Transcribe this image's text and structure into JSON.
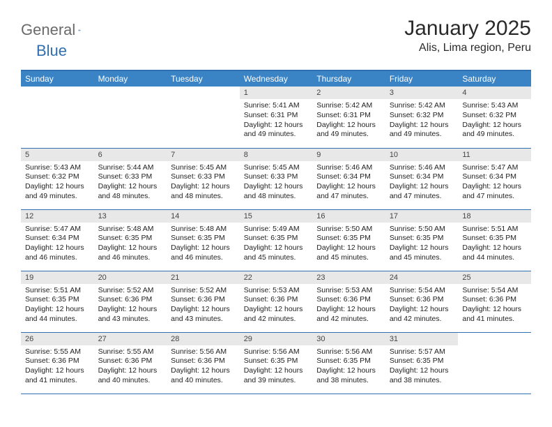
{
  "logo": {
    "part1": "General",
    "part2": "Blue"
  },
  "title": "January 2025",
  "location": "Alis, Lima region, Peru",
  "colors": {
    "header_bg": "#3a84c6",
    "header_border": "#2f6fb0",
    "daynum_bg": "#e8e8e8",
    "text": "#222222"
  },
  "weekdays": [
    "Sunday",
    "Monday",
    "Tuesday",
    "Wednesday",
    "Thursday",
    "Friday",
    "Saturday"
  ],
  "weeks": [
    [
      {
        "n": "",
        "sr": "",
        "ss": "",
        "dl": ""
      },
      {
        "n": "",
        "sr": "",
        "ss": "",
        "dl": ""
      },
      {
        "n": "",
        "sr": "",
        "ss": "",
        "dl": ""
      },
      {
        "n": "1",
        "sr": "Sunrise: 5:41 AM",
        "ss": "Sunset: 6:31 PM",
        "dl": "Daylight: 12 hours and 49 minutes."
      },
      {
        "n": "2",
        "sr": "Sunrise: 5:42 AM",
        "ss": "Sunset: 6:31 PM",
        "dl": "Daylight: 12 hours and 49 minutes."
      },
      {
        "n": "3",
        "sr": "Sunrise: 5:42 AM",
        "ss": "Sunset: 6:32 PM",
        "dl": "Daylight: 12 hours and 49 minutes."
      },
      {
        "n": "4",
        "sr": "Sunrise: 5:43 AM",
        "ss": "Sunset: 6:32 PM",
        "dl": "Daylight: 12 hours and 49 minutes."
      }
    ],
    [
      {
        "n": "5",
        "sr": "Sunrise: 5:43 AM",
        "ss": "Sunset: 6:32 PM",
        "dl": "Daylight: 12 hours and 49 minutes."
      },
      {
        "n": "6",
        "sr": "Sunrise: 5:44 AM",
        "ss": "Sunset: 6:33 PM",
        "dl": "Daylight: 12 hours and 48 minutes."
      },
      {
        "n": "7",
        "sr": "Sunrise: 5:45 AM",
        "ss": "Sunset: 6:33 PM",
        "dl": "Daylight: 12 hours and 48 minutes."
      },
      {
        "n": "8",
        "sr": "Sunrise: 5:45 AM",
        "ss": "Sunset: 6:33 PM",
        "dl": "Daylight: 12 hours and 48 minutes."
      },
      {
        "n": "9",
        "sr": "Sunrise: 5:46 AM",
        "ss": "Sunset: 6:34 PM",
        "dl": "Daylight: 12 hours and 47 minutes."
      },
      {
        "n": "10",
        "sr": "Sunrise: 5:46 AM",
        "ss": "Sunset: 6:34 PM",
        "dl": "Daylight: 12 hours and 47 minutes."
      },
      {
        "n": "11",
        "sr": "Sunrise: 5:47 AM",
        "ss": "Sunset: 6:34 PM",
        "dl": "Daylight: 12 hours and 47 minutes."
      }
    ],
    [
      {
        "n": "12",
        "sr": "Sunrise: 5:47 AM",
        "ss": "Sunset: 6:34 PM",
        "dl": "Daylight: 12 hours and 46 minutes."
      },
      {
        "n": "13",
        "sr": "Sunrise: 5:48 AM",
        "ss": "Sunset: 6:35 PM",
        "dl": "Daylight: 12 hours and 46 minutes."
      },
      {
        "n": "14",
        "sr": "Sunrise: 5:48 AM",
        "ss": "Sunset: 6:35 PM",
        "dl": "Daylight: 12 hours and 46 minutes."
      },
      {
        "n": "15",
        "sr": "Sunrise: 5:49 AM",
        "ss": "Sunset: 6:35 PM",
        "dl": "Daylight: 12 hours and 45 minutes."
      },
      {
        "n": "16",
        "sr": "Sunrise: 5:50 AM",
        "ss": "Sunset: 6:35 PM",
        "dl": "Daylight: 12 hours and 45 minutes."
      },
      {
        "n": "17",
        "sr": "Sunrise: 5:50 AM",
        "ss": "Sunset: 6:35 PM",
        "dl": "Daylight: 12 hours and 45 minutes."
      },
      {
        "n": "18",
        "sr": "Sunrise: 5:51 AM",
        "ss": "Sunset: 6:35 PM",
        "dl": "Daylight: 12 hours and 44 minutes."
      }
    ],
    [
      {
        "n": "19",
        "sr": "Sunrise: 5:51 AM",
        "ss": "Sunset: 6:35 PM",
        "dl": "Daylight: 12 hours and 44 minutes."
      },
      {
        "n": "20",
        "sr": "Sunrise: 5:52 AM",
        "ss": "Sunset: 6:36 PM",
        "dl": "Daylight: 12 hours and 43 minutes."
      },
      {
        "n": "21",
        "sr": "Sunrise: 5:52 AM",
        "ss": "Sunset: 6:36 PM",
        "dl": "Daylight: 12 hours and 43 minutes."
      },
      {
        "n": "22",
        "sr": "Sunrise: 5:53 AM",
        "ss": "Sunset: 6:36 PM",
        "dl": "Daylight: 12 hours and 42 minutes."
      },
      {
        "n": "23",
        "sr": "Sunrise: 5:53 AM",
        "ss": "Sunset: 6:36 PM",
        "dl": "Daylight: 12 hours and 42 minutes."
      },
      {
        "n": "24",
        "sr": "Sunrise: 5:54 AM",
        "ss": "Sunset: 6:36 PM",
        "dl": "Daylight: 12 hours and 42 minutes."
      },
      {
        "n": "25",
        "sr": "Sunrise: 5:54 AM",
        "ss": "Sunset: 6:36 PM",
        "dl": "Daylight: 12 hours and 41 minutes."
      }
    ],
    [
      {
        "n": "26",
        "sr": "Sunrise: 5:55 AM",
        "ss": "Sunset: 6:36 PM",
        "dl": "Daylight: 12 hours and 41 minutes."
      },
      {
        "n": "27",
        "sr": "Sunrise: 5:55 AM",
        "ss": "Sunset: 6:36 PM",
        "dl": "Daylight: 12 hours and 40 minutes."
      },
      {
        "n": "28",
        "sr": "Sunrise: 5:56 AM",
        "ss": "Sunset: 6:36 PM",
        "dl": "Daylight: 12 hours and 40 minutes."
      },
      {
        "n": "29",
        "sr": "Sunrise: 5:56 AM",
        "ss": "Sunset: 6:35 PM",
        "dl": "Daylight: 12 hours and 39 minutes."
      },
      {
        "n": "30",
        "sr": "Sunrise: 5:56 AM",
        "ss": "Sunset: 6:35 PM",
        "dl": "Daylight: 12 hours and 38 minutes."
      },
      {
        "n": "31",
        "sr": "Sunrise: 5:57 AM",
        "ss": "Sunset: 6:35 PM",
        "dl": "Daylight: 12 hours and 38 minutes."
      },
      {
        "n": "",
        "sr": "",
        "ss": "",
        "dl": ""
      }
    ]
  ]
}
